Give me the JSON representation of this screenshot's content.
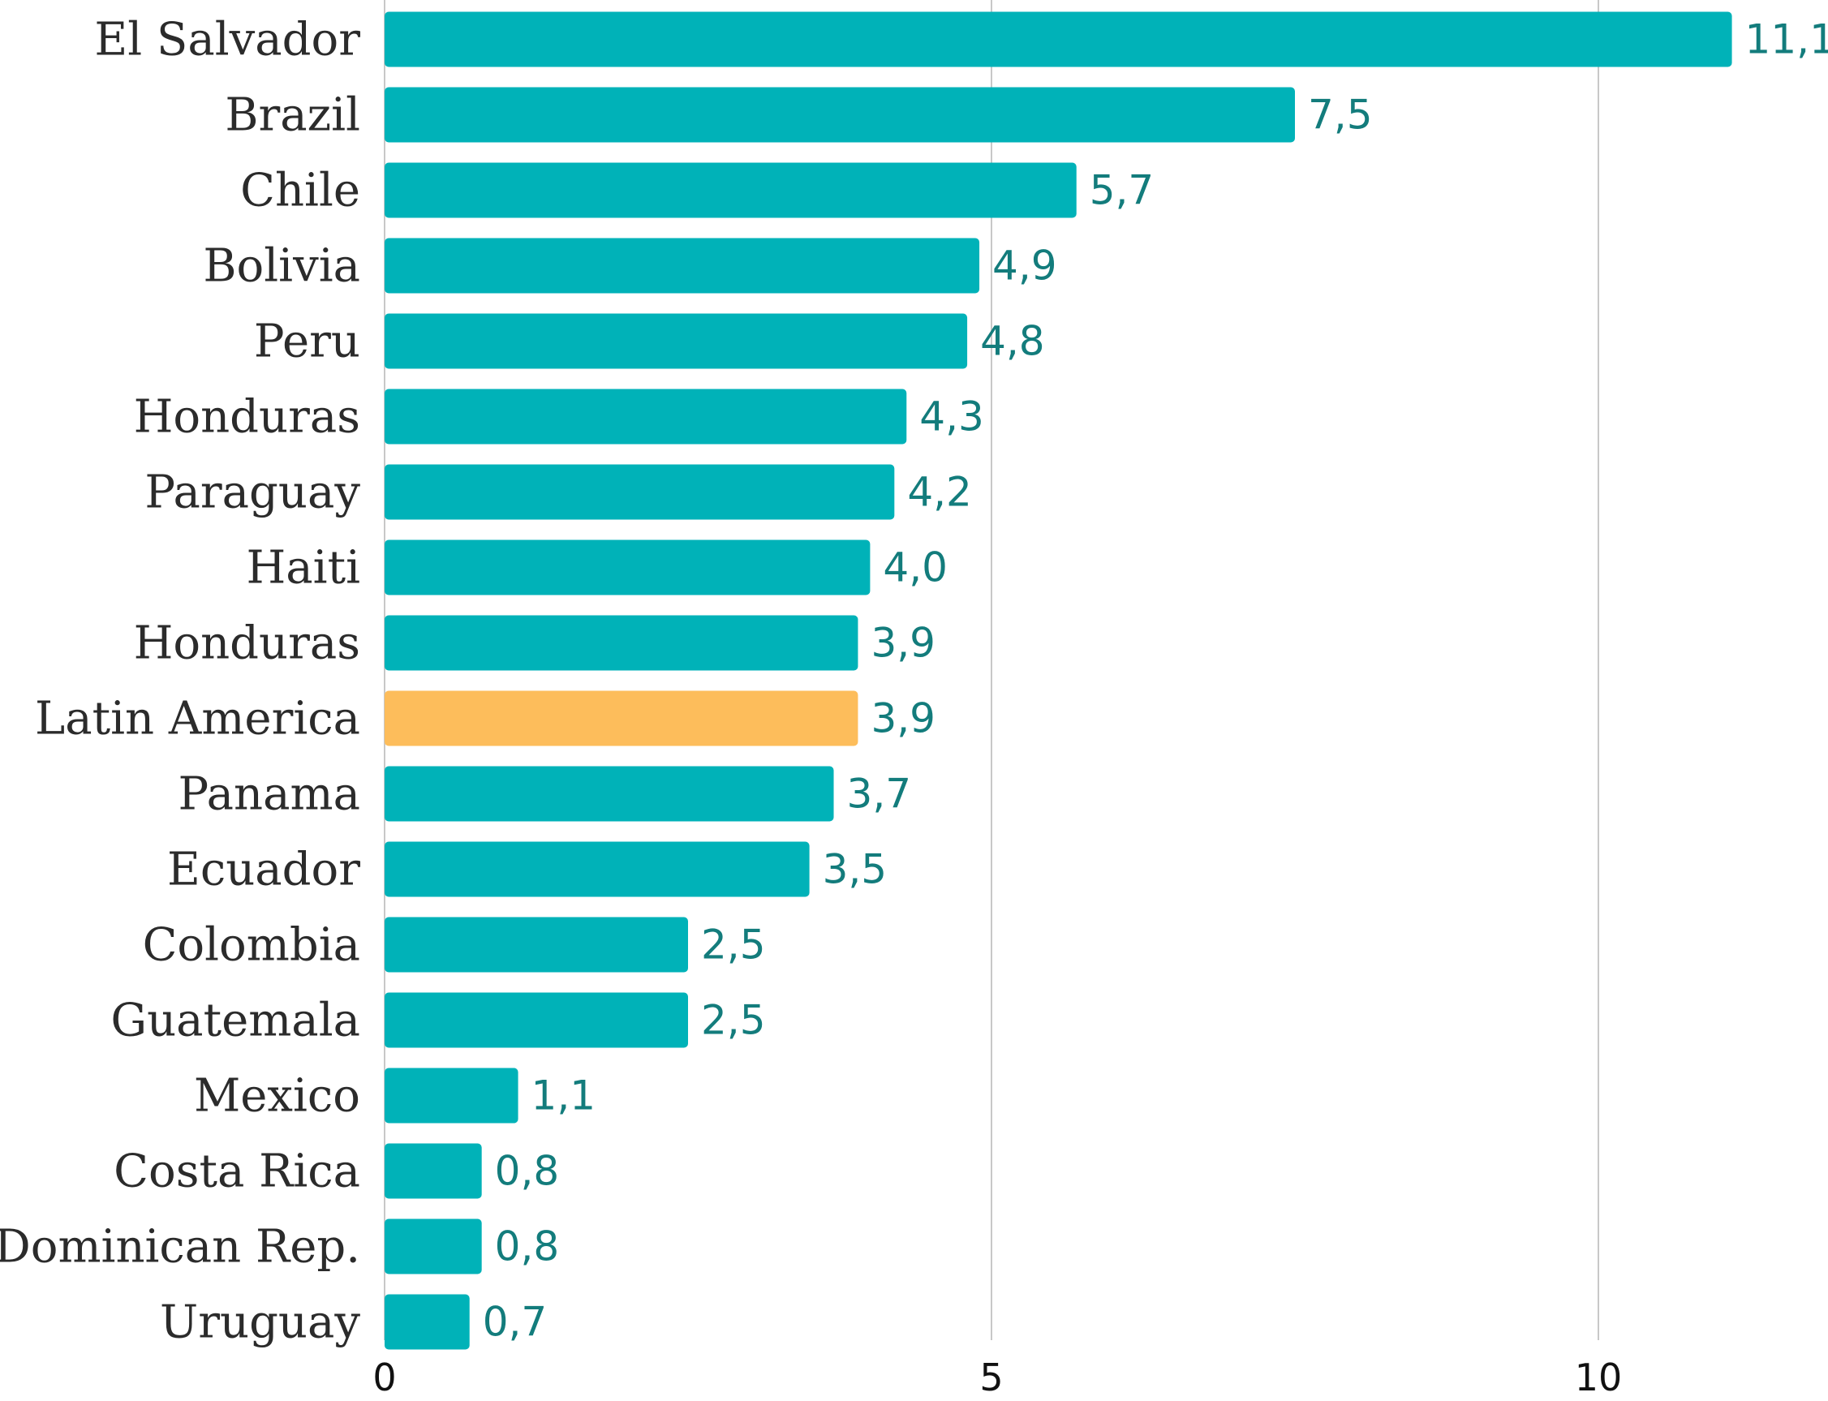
{
  "chart_data": {
    "type": "bar",
    "orientation": "horizontal",
    "title": "",
    "xlabel": "",
    "ylabel": "",
    "xlim": [
      0,
      11.5
    ],
    "x_ticks": [
      0,
      5,
      10
    ],
    "x_tick_labels": [
      "0",
      "5",
      "10"
    ],
    "grid": true,
    "legend": "none",
    "categories": [
      "El Salvador",
      "Brazil",
      "Chile",
      "Bolivia",
      "Peru",
      "Honduras",
      "Paraguay",
      "Haiti",
      "Honduras",
      "Latin America",
      "Panama",
      "Ecuador",
      "Colombia",
      "Guatemala",
      "Mexico",
      "Costa Rica",
      "Dominican  Rep.",
      "Uruguay"
    ],
    "values": [
      11.1,
      7.5,
      5.7,
      4.9,
      4.8,
      4.3,
      4.2,
      4.0,
      3.9,
      3.9,
      3.7,
      3.5,
      2.5,
      2.5,
      1.1,
      0.8,
      0.8,
      0.7
    ],
    "value_labels": [
      "11,1",
      "7,5",
      "5,7",
      "4,9",
      "4,8",
      "4,3",
      "4,2",
      "4,0",
      "3,9",
      "3,9",
      "3,7",
      "3,5",
      "2,5",
      "2,5",
      "1,1",
      "0,8",
      "0,8",
      "0,7"
    ],
    "highlight_index": 9,
    "colors": {
      "bar": "#00b2b8",
      "highlight_bar": "#fdbd5b",
      "category_label": "#2b2b2b",
      "value_label": "#137c7c",
      "highlight_text": "#ee1c25",
      "grid": "#c8c8c8",
      "axis": "#c8c8c8",
      "tick_label": "#111111"
    }
  }
}
